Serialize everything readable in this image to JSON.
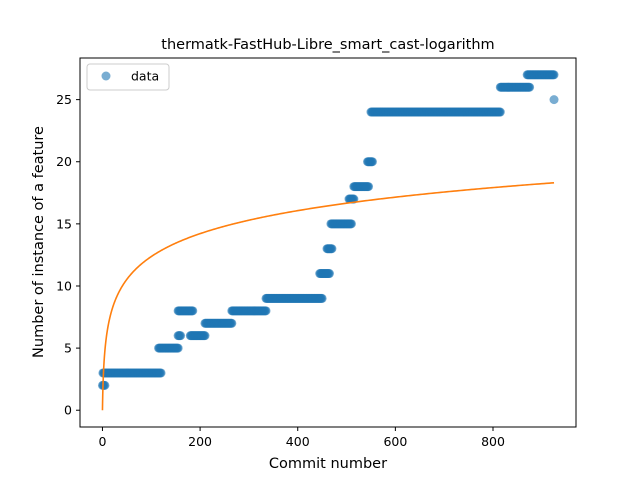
{
  "chart_data": {
    "type": "scatter",
    "title": "thermatk-FastHub-Libre_smart_cast-logarithm",
    "xlabel": "Commit number",
    "ylabel": "Number of instance of a feature",
    "xlim": [
      -46,
      970
    ],
    "ylim": [
      -1.35,
      28.35
    ],
    "xticks": [
      0,
      200,
      400,
      600,
      800
    ],
    "yticks": [
      0,
      5,
      10,
      15,
      20,
      25
    ],
    "legend": {
      "entries": [
        "data"
      ],
      "placement": "upper-left"
    },
    "colors": {
      "scatter": "#1f77b4",
      "fit": "#ff7f0e"
    },
    "series": [
      {
        "name": "data",
        "kind": "scatter",
        "segments": [
          {
            "x_start": 0,
            "x_end": 5,
            "y": 2
          },
          {
            "x_start": 1,
            "x_end": 120,
            "y": 3
          },
          {
            "x_start": 115,
            "x_end": 155,
            "y": 5
          },
          {
            "x_start": 155,
            "x_end": 160,
            "y": 6
          },
          {
            "x_start": 155,
            "x_end": 185,
            "y": 8
          },
          {
            "x_start": 180,
            "x_end": 210,
            "y": 6
          },
          {
            "x_start": 210,
            "x_end": 265,
            "y": 7
          },
          {
            "x_start": 265,
            "x_end": 335,
            "y": 8
          },
          {
            "x_start": 335,
            "x_end": 450,
            "y": 9
          },
          {
            "x_start": 445,
            "x_end": 465,
            "y": 11
          },
          {
            "x_start": 460,
            "x_end": 470,
            "y": 13
          },
          {
            "x_start": 468,
            "x_end": 510,
            "y": 15
          },
          {
            "x_start": 505,
            "x_end": 515,
            "y": 17
          },
          {
            "x_start": 515,
            "x_end": 545,
            "y": 18
          },
          {
            "x_start": 543,
            "x_end": 553,
            "y": 20
          },
          {
            "x_start": 550,
            "x_end": 815,
            "y": 24
          },
          {
            "x_start": 815,
            "x_end": 875,
            "y": 26
          },
          {
            "x_start": 870,
            "x_end": 925,
            "y": 27
          }
        ],
        "points": [
          {
            "x": 925,
            "y": 25
          }
        ]
      },
      {
        "kind": "line",
        "function": "logarithmic",
        "x_range": [
          0,
          925
        ],
        "a": 2.68,
        "c": 0
      }
    ]
  }
}
